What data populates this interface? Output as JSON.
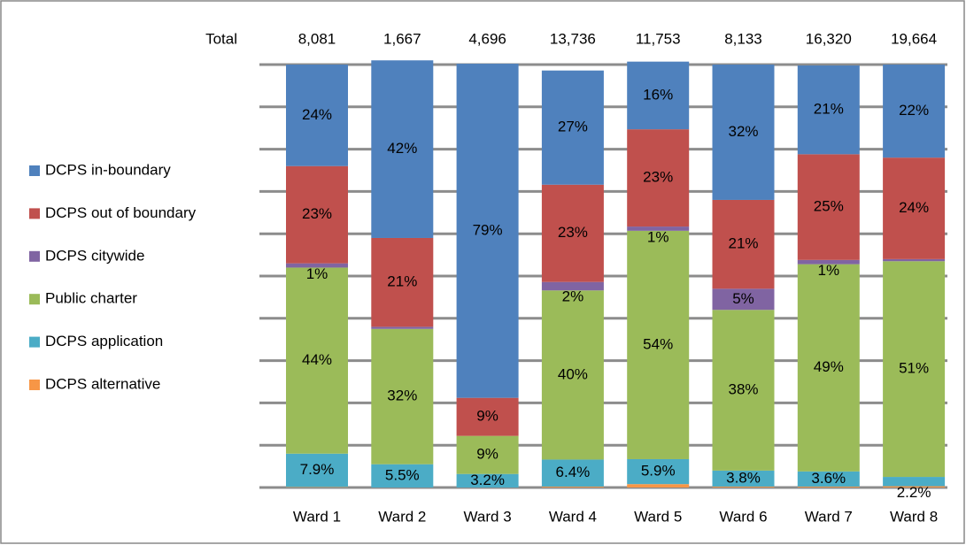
{
  "chart_data": {
    "type": "stacked-bar",
    "categories": [
      "Ward 1",
      "Ward 2",
      "Ward 3",
      "Ward 4",
      "Ward 5",
      "Ward 6",
      "Ward 7",
      "Ward 8"
    ],
    "totals_label": "Total",
    "totals": [
      {
        "value": 8081,
        "label": "8,081"
      },
      {
        "value": 1667,
        "label": "1,667"
      },
      {
        "value": 4696,
        "label": "4,696"
      },
      {
        "value": 13736,
        "label": "13,736"
      },
      {
        "value": 11753,
        "label": "11,753"
      },
      {
        "value": 8133,
        "label": "8,133"
      },
      {
        "value": 16320,
        "label": "16,320"
      },
      {
        "value": 19664,
        "label": "19,664"
      }
    ],
    "ylim": [
      0,
      100
    ],
    "yticks": [
      0,
      10,
      20,
      30,
      40,
      50,
      60,
      70,
      80,
      90,
      100
    ],
    "grid": true,
    "legend": "left",
    "series": [
      {
        "name": "DCPS alternative",
        "color": "#f79646",
        "values": [
          0.1,
          0,
          0,
          0.2,
          0.8,
          0.2,
          0.2,
          0.3
        ],
        "value_labels": [
          null,
          null,
          null,
          null,
          null,
          null,
          null,
          null
        ]
      },
      {
        "name": "DCPS application",
        "color": "#4bacc6",
        "values": [
          7.9,
          5.5,
          3.2,
          6.4,
          5.9,
          3.8,
          3.6,
          2.2
        ],
        "value_labels": [
          "7.9%",
          "5.5%",
          "3.2%",
          "6.4%",
          "5.9%",
          "3.8%",
          "3.6%",
          "2.2%"
        ]
      },
      {
        "name": "Public charter",
        "color": "#9bbb59",
        "values": [
          44,
          32,
          9,
          40,
          54,
          38,
          49,
          51
        ],
        "value_labels": [
          "44%",
          "32%",
          "9%",
          "40%",
          "54%",
          "38%",
          "49%",
          "51%"
        ]
      },
      {
        "name": "DCPS citywide",
        "color": "#8064a2",
        "values": [
          1,
          0.5,
          0,
          2,
          1,
          5,
          1,
          0.5
        ],
        "value_labels": [
          "1%",
          null,
          null,
          "2%",
          "1%",
          "5%",
          "1%",
          null
        ]
      },
      {
        "name": "DCPS out of boundary",
        "color": "#c0504d",
        "values": [
          23,
          21,
          9,
          23,
          23,
          21,
          25,
          24
        ],
        "value_labels": [
          "23%",
          "21%",
          "9%",
          "23%",
          "23%",
          "21%",
          "25%",
          "24%"
        ]
      },
      {
        "name": "DCPS in-boundary",
        "color": "#4f81bd",
        "values": [
          24,
          42,
          79,
          27,
          16,
          32,
          21,
          22
        ],
        "value_labels": [
          "24%",
          "42%",
          "79%",
          "27%",
          "16%",
          "32%",
          "21%",
          "22%"
        ]
      }
    ]
  }
}
